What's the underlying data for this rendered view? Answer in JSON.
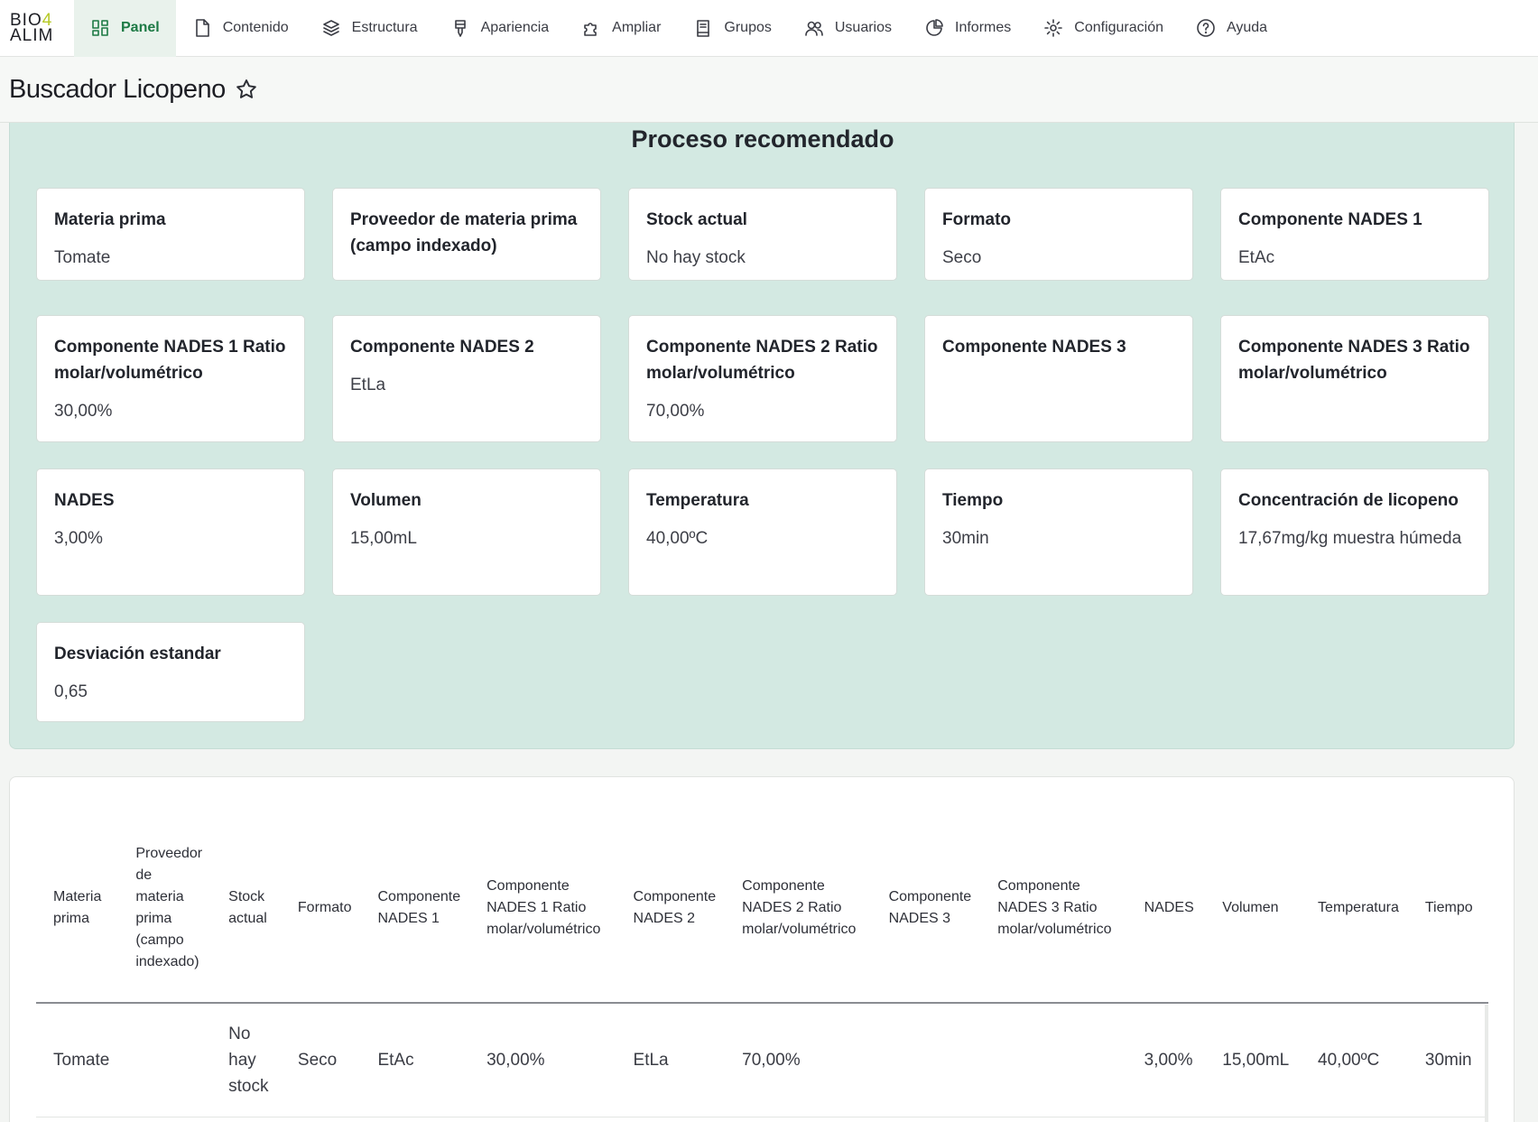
{
  "app": {
    "logo_line1": "BIO",
    "logo_dot": "4",
    "logo_line2": "ALIM"
  },
  "toolbar": {
    "items": [
      {
        "label": "Panel",
        "icon": "dashboard-icon",
        "active": true
      },
      {
        "label": "Contenido",
        "icon": "file-icon"
      },
      {
        "label": "Estructura",
        "icon": "layers-icon"
      },
      {
        "label": "Apariencia",
        "icon": "brush-icon"
      },
      {
        "label": "Ampliar",
        "icon": "puzzle-icon"
      },
      {
        "label": "Grupos",
        "icon": "book-icon"
      },
      {
        "label": "Usuarios",
        "icon": "users-icon"
      },
      {
        "label": "Informes",
        "icon": "pie-chart-icon"
      },
      {
        "label": "Configuración",
        "icon": "gear-icon"
      },
      {
        "label": "Ayuda",
        "icon": "help-icon"
      }
    ]
  },
  "page": {
    "title": "Buscador Licopeno"
  },
  "panel": {
    "title": "Proceso recomendado",
    "cards": [
      {
        "label": "Materia prima",
        "value": "Tomate"
      },
      {
        "label": "Proveedor de materia prima (campo indexado)",
        "value": ""
      },
      {
        "label": "Stock actual",
        "value": "No hay stock"
      },
      {
        "label": "Formato",
        "value": "Seco"
      },
      {
        "label": "Componente NADES 1",
        "value": "EtAc"
      },
      {
        "label": "Componente NADES 1 Ratio molar/volumétrico",
        "value": "30,00%"
      },
      {
        "label": "Componente NADES 2",
        "value": "EtLa"
      },
      {
        "label": "Componente NADES 2 Ratio molar/volumétrico",
        "value": "70,00%"
      },
      {
        "label": "Componente NADES 3",
        "value": ""
      },
      {
        "label": "Componente NADES 3 Ratio molar/volumétrico",
        "value": ""
      },
      {
        "label": "NADES",
        "value": "3,00%"
      },
      {
        "label": "Volumen",
        "value": "15,00mL"
      },
      {
        "label": "Temperatura",
        "value": "40,00ºC"
      },
      {
        "label": "Tiempo",
        "value": "30min"
      },
      {
        "label": "Concentración de licopeno",
        "value": "17,67mg/kg muestra húmeda"
      },
      {
        "label": "Desviación estandar",
        "value": "0,65"
      }
    ]
  },
  "table": {
    "headers": [
      "Materia prima",
      "Proveedor de materia prima (campo indexado)",
      "Stock actual",
      "Formato",
      "Componente NADES 1",
      "Componente NADES 1 Ratio molar/volumétrico",
      "Componente NADES 2",
      "Componente NADES 2 Ratio molar/volumétrico",
      "Componente NADES 3",
      "Componente NADES 3 Ratio molar/volumétrico",
      "NADES",
      "Volumen",
      "Temperatura",
      "Tiempo"
    ],
    "rows": [
      [
        "Tomate",
        "",
        "No hay stock",
        "Seco",
        "EtAc",
        "30,00%",
        "EtLa",
        "70,00%",
        "",
        "",
        "3,00%",
        "15,00mL",
        "40,00ºC",
        "30min"
      ]
    ]
  }
}
